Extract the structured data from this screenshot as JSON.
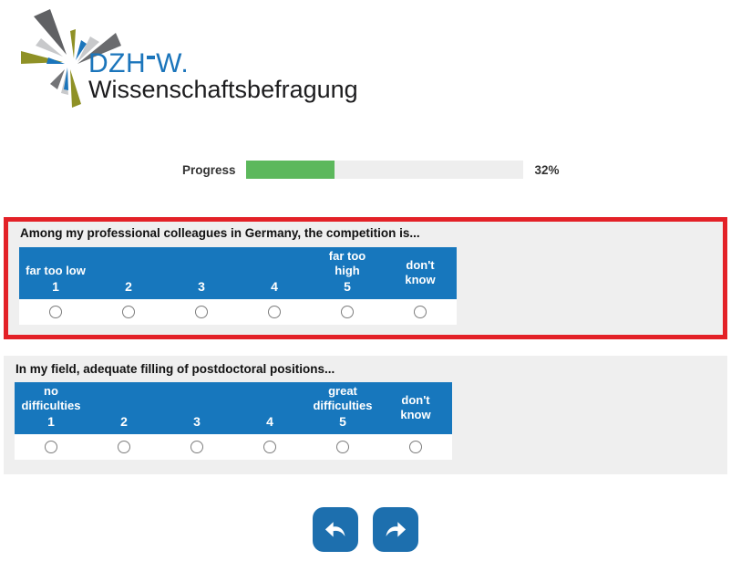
{
  "brand": {
    "wordmark_left": "DZH",
    "wordmark_right": "W.",
    "subtitle": "Wissenschaftsbefragung"
  },
  "progress": {
    "label": "Progress",
    "percent": 32,
    "percent_text": "32%"
  },
  "questions": [
    {
      "text": "Among my professional colleagues in Germany, the competition is...",
      "highlighted": true,
      "columns": [
        {
          "label": "far too low",
          "value": "1"
        },
        {
          "label": "",
          "value": "2"
        },
        {
          "label": "",
          "value": "3"
        },
        {
          "label": "",
          "value": "4"
        },
        {
          "label": "far too high",
          "value": "5"
        },
        {
          "label": "don't know",
          "value": ""
        }
      ]
    },
    {
      "text": "In my field, adequate filling of postdoctoral positions...",
      "highlighted": false,
      "columns": [
        {
          "label": "no difficulties",
          "value": "1"
        },
        {
          "label": "",
          "value": "2"
        },
        {
          "label": "",
          "value": "3"
        },
        {
          "label": "",
          "value": "4"
        },
        {
          "label": "great difficulties",
          "value": "5"
        },
        {
          "label": "don't know",
          "value": ""
        }
      ]
    }
  ],
  "icons": {
    "logo": "starburst",
    "back": "curved-arrow-left",
    "forward": "curved-arrow-right"
  },
  "colors": {
    "brand_blue": "#1b75bb",
    "scale_header_blue": "#1777bd",
    "button_blue": "#1d6fae",
    "highlight_red": "#e32127",
    "progress_green": "#5cb85c",
    "block_gray": "#efefef"
  }
}
